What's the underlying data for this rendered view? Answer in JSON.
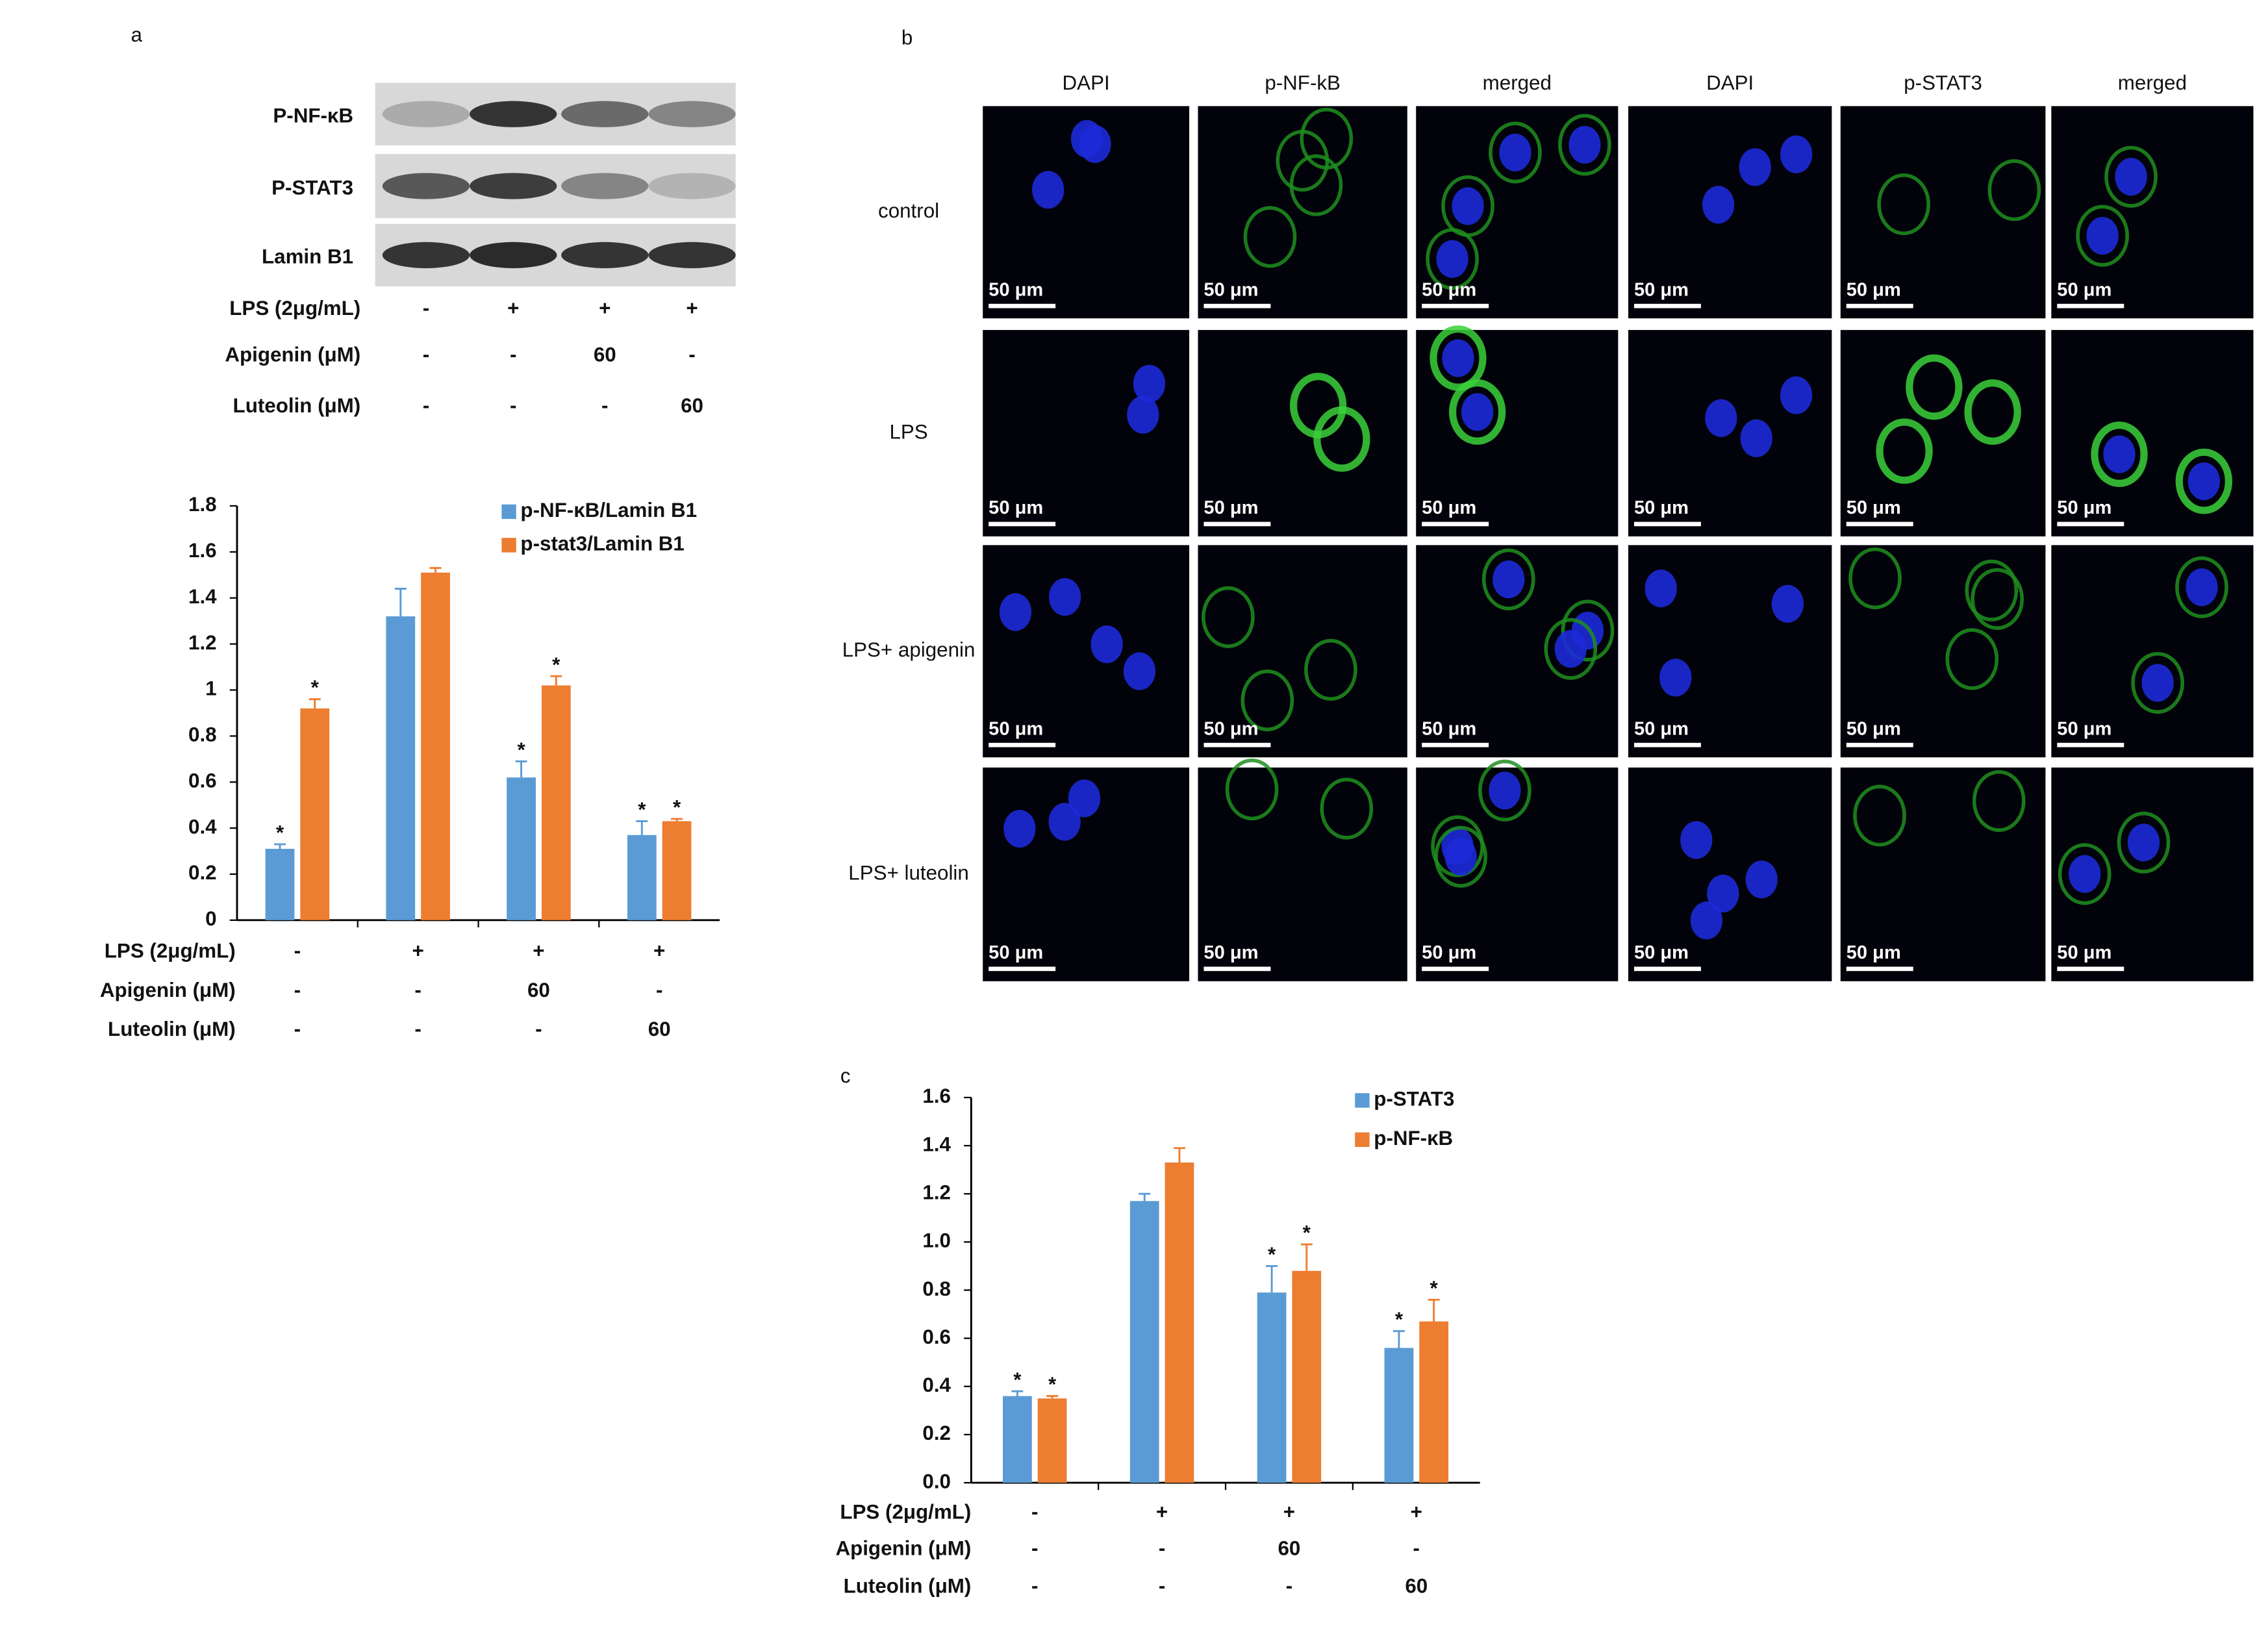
{
  "panel_labels": [
    "a",
    "b",
    "c"
  ],
  "blot": {
    "rows": [
      "P-NF-κB",
      "P-STAT3",
      "Lamin B1"
    ],
    "treatments": [
      {
        "label": "LPS (2μg/mL)",
        "values": [
          "-",
          "+",
          "+",
          "+"
        ]
      },
      {
        "label": "Apigenin (μM)",
        "values": [
          "-",
          "-",
          "60",
          "-"
        ]
      },
      {
        "label": "Luteolin (μM)",
        "values": [
          "-",
          "-",
          "-",
          "60"
        ]
      }
    ]
  },
  "microscopy": {
    "columns": [
      "DAPI",
      "p-NF-kB",
      "merged",
      "DAPI",
      "p-STAT3",
      "merged"
    ],
    "rows": [
      "control",
      "LPS",
      "LPS+ apigenin",
      "LPS+ luteolin"
    ],
    "scale_bar": "50 μm"
  },
  "chart_data": [
    {
      "type": "bar",
      "legend": "upper right",
      "ylim": [
        0,
        1.8
      ],
      "yticks": [
        0,
        0.2,
        0.4,
        0.6,
        0.8,
        1,
        1.2,
        1.4,
        1.6,
        1.8
      ],
      "treatments": [
        {
          "label": "LPS (2μg/mL)",
          "values": [
            "-",
            "+",
            "+",
            "+"
          ]
        },
        {
          "label": "Apigenin (μM)",
          "values": [
            "-",
            "-",
            "60",
            "-"
          ]
        },
        {
          "label": "Luteolin (μM)",
          "values": [
            "-",
            "-",
            "-",
            "60"
          ]
        }
      ],
      "series": [
        {
          "name": "p-NF-κB/Lamin B1",
          "color": "#5b9bd5",
          "values": [
            0.31,
            1.32,
            0.62,
            0.37
          ],
          "errors": [
            0.02,
            0.12,
            0.07,
            0.06
          ],
          "significance": [
            "*",
            null,
            "*",
            "*"
          ]
        },
        {
          "name": "p-stat3/Lamin B1",
          "color": "#ed7d31",
          "values": [
            0.92,
            1.51,
            1.02,
            0.43
          ],
          "errors": [
            0.04,
            0.02,
            0.04,
            0.01
          ],
          "significance": [
            "*",
            null,
            "*",
            "*"
          ]
        }
      ]
    },
    {
      "type": "bar",
      "legend": "upper right",
      "ylim": [
        0,
        1.6
      ],
      "yticks": [
        {
          "value": 0,
          "label": "0.0"
        },
        0.2,
        0.4,
        0.6,
        0.8,
        {
          "value": 1,
          "label": "1.0"
        },
        1.2,
        1.4,
        1.6
      ],
      "treatments": [
        {
          "label": "LPS (2μg/mL)",
          "values": [
            "-",
            "+",
            "+",
            "+"
          ]
        },
        {
          "label": "Apigenin (μM)",
          "values": [
            "-",
            "-",
            "60",
            "-"
          ]
        },
        {
          "label": "Luteolin (μM)",
          "values": [
            "-",
            "-",
            "-",
            "60"
          ]
        }
      ],
      "series": [
        {
          "name": "p-STAT3",
          "color": "#5b9bd5",
          "values": [
            0.36,
            1.17,
            0.79,
            0.56
          ],
          "errors": [
            0.02,
            0.03,
            0.11,
            0.07
          ],
          "significance": [
            "*",
            null,
            "*",
            "*"
          ]
        },
        {
          "name": "p-NF-κB",
          "color": "#ed7d31",
          "values": [
            0.35,
            1.33,
            0.88,
            0.67
          ],
          "errors": [
            0.01,
            0.06,
            0.11,
            0.09
          ],
          "significance": [
            "*",
            null,
            "*",
            "*"
          ]
        }
      ]
    }
  ]
}
